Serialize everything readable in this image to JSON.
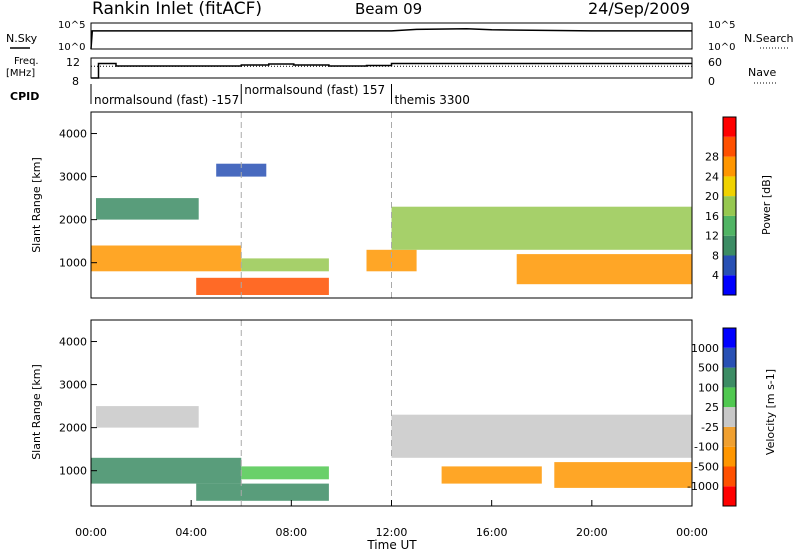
{
  "header": {
    "title": "Rankin Inlet (fitACF)",
    "beam": "Beam 09",
    "date": "24/Sep/2009"
  },
  "side_labels": {
    "nsky": "N.Sky",
    "freq_line1": "Freq.",
    "freq_line2": "[MHz]",
    "cpid": "CPID",
    "nsearch": "N.Search",
    "nave": "Nave"
  },
  "cpid_segments": [
    {
      "label": "normalsound (fast) -157",
      "start": 0
    },
    {
      "label": "normalsound (fast) 157",
      "start": 6
    },
    {
      "label": "themis 3300",
      "start": 12
    }
  ],
  "chart_data": [
    {
      "type": "line",
      "panel": "noise",
      "xlabel": "",
      "xlim": [
        0,
        24
      ],
      "left_axis": {
        "label": "N.Sky",
        "ticks": [
          "10^5",
          "10^0"
        ],
        "scale": "log"
      },
      "right_axis": {
        "label": "N.Search",
        "ticks": [
          "10^5",
          "10^0"
        ],
        "scale": "log"
      },
      "series": [
        {
          "name": "N.Sky",
          "style": "solid",
          "x": [
            0,
            0.05,
            0.3,
            4,
            8,
            12,
            13,
            15,
            16,
            20,
            24
          ],
          "values": [
            1,
            3000,
            3000,
            3000,
            3000,
            3000,
            6000,
            8000,
            5000,
            3000,
            3000
          ]
        }
      ]
    },
    {
      "type": "line",
      "panel": "frequency",
      "xlim": [
        0,
        24
      ],
      "left_axis": {
        "label": "Freq. [MHz]",
        "ticks": [
          "12",
          "8"
        ],
        "range": [
          8,
          12
        ]
      },
      "right_axis": {
        "label": "Nave",
        "ticks": [
          "60",
          "0"
        ],
        "range": [
          0,
          60
        ]
      },
      "series": [
        {
          "name": "Freq.",
          "style": "solid",
          "x": [
            0,
            0.3,
            1.0,
            6.0,
            7.1,
            8.1,
            9.5,
            11.0,
            12.0,
            24
          ],
          "values": [
            8.0,
            10.9,
            10.4,
            10.6,
            10.8,
            10.6,
            10.4,
            10.5,
            10.9,
            10.9
          ]
        },
        {
          "name": "Nave",
          "style": "dotted",
          "x": [
            0,
            24
          ],
          "values": [
            35,
            35
          ]
        }
      ]
    },
    {
      "type": "heatmap",
      "panel": "power",
      "title": "",
      "xlabel": "",
      "ylabel": "Slant Range [km]",
      "xlim": [
        0,
        24
      ],
      "ylim": [
        180,
        4500
      ],
      "yticks": [
        1000,
        2000,
        3000,
        4000
      ],
      "colorbar": {
        "label": "Power [dB]",
        "ticks": [
          "4",
          "8",
          "12",
          "16",
          "20",
          "24",
          "28"
        ],
        "colors": [
          "#0000ff",
          "#2850b4",
          "#3c8c64",
          "#50b464",
          "#96c850",
          "#f0d200",
          "#ff9600",
          "#ff5000",
          "#ff0000"
        ]
      },
      "echo_regions": [
        {
          "t0": 0.0,
          "t1": 6.0,
          "r0": 800,
          "r1": 1400,
          "level": 26
        },
        {
          "t0": 4.2,
          "t1": 9.5,
          "r0": 250,
          "r1": 650,
          "level": 28
        },
        {
          "t0": 0.2,
          "t1": 4.3,
          "r0": 2000,
          "r1": 2500,
          "level": 10
        },
        {
          "t0": 6.0,
          "t1": 9.5,
          "r0": 800,
          "r1": 1100,
          "level": 18
        },
        {
          "t0": 11.0,
          "t1": 13.0,
          "r0": 800,
          "r1": 1300,
          "level": 24
        },
        {
          "t0": 12.0,
          "t1": 24.0,
          "r0": 1300,
          "r1": 2300,
          "level": 18
        },
        {
          "t0": 17.0,
          "t1": 24.0,
          "r0": 500,
          "r1": 1200,
          "level": 26
        },
        {
          "t0": 5.0,
          "t1": 7.0,
          "r0": 3000,
          "r1": 3300,
          "level": 6
        }
      ]
    },
    {
      "type": "heatmap",
      "panel": "velocity",
      "title": "",
      "xlabel": "Time UT",
      "ylabel": "Slant Range [km]",
      "xlim": [
        0,
        24
      ],
      "ylim": [
        180,
        4500
      ],
      "xticks": [
        "00:00",
        "04:00",
        "08:00",
        "12:00",
        "16:00",
        "20:00",
        "00:00"
      ],
      "yticks": [
        1000,
        2000,
        3000,
        4000
      ],
      "colorbar": {
        "label": "Velocity [m s-1]",
        "ticks": [
          "-1000",
          "-500",
          "-100",
          "-25",
          "25",
          "100",
          "500",
          "1000"
        ],
        "colors": [
          "#ff0000",
          "#ff5000",
          "#ff9600",
          "#f0a030",
          "#c8c8c8",
          "#50c850",
          "#3c8c64",
          "#2850b4",
          "#0000ff"
        ]
      },
      "echo_regions": [
        {
          "t0": 0.0,
          "t1": 6.0,
          "r0": 700,
          "r1": 1300,
          "level": 150
        },
        {
          "t0": 4.2,
          "t1": 9.5,
          "r0": 300,
          "r1": 700,
          "level": 200
        },
        {
          "t0": 0.2,
          "t1": 4.3,
          "r0": 2000,
          "r1": 2500,
          "level": 0
        },
        {
          "t0": 6.0,
          "t1": 9.5,
          "r0": 800,
          "r1": 1100,
          "level": 30
        },
        {
          "t0": 12.0,
          "t1": 24.0,
          "r0": 1300,
          "r1": 2300,
          "level": 0
        },
        {
          "t0": 14.0,
          "t1": 18.0,
          "r0": 700,
          "r1": 1100,
          "level": -300
        },
        {
          "t0": 18.5,
          "t1": 24.0,
          "r0": 600,
          "r1": 1200,
          "level": -200
        }
      ]
    }
  ]
}
